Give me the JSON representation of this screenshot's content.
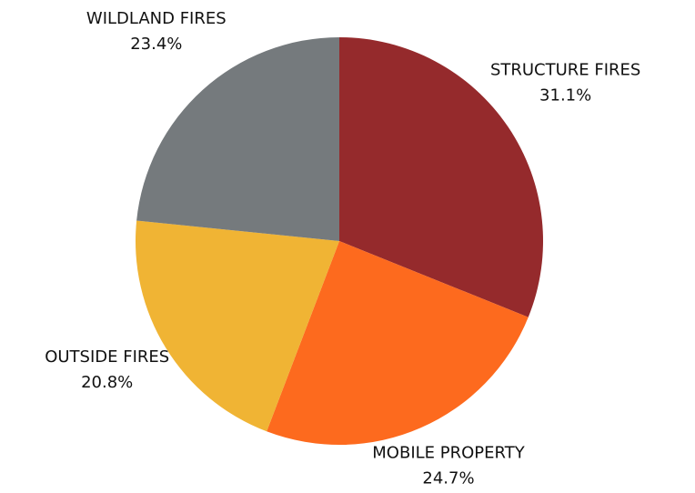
{
  "chart_data": {
    "type": "pie",
    "categories": [
      "STRUCTURE FIRES",
      "MOBILE PROPERTY",
      "OUTSIDE FIRES",
      "WILDLAND FIRES"
    ],
    "values": [
      31.1,
      24.7,
      20.8,
      23.4
    ],
    "value_labels": [
      "31.1%",
      "24.7%",
      "20.8%",
      "23.4%"
    ],
    "colors": [
      "#952a2c",
      "#fd6a1e",
      "#f0b434",
      "#757a7d"
    ]
  }
}
